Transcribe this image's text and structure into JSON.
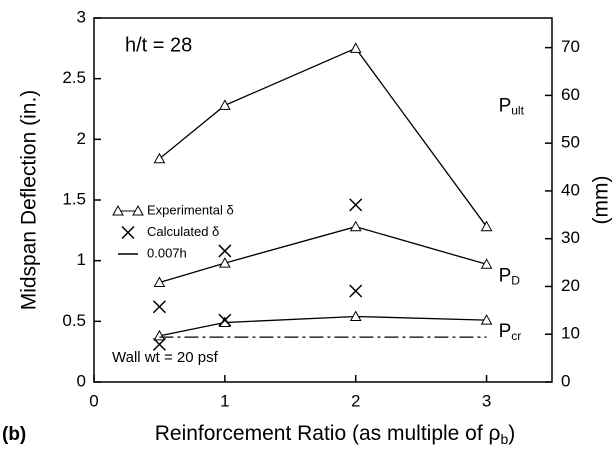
{
  "chart_data": {
    "type": "line",
    "title": "h/t = 28",
    "note": "Wall wt = 20 psf",
    "panel": "(b)",
    "ylabel": "Midspan Deflection (in.)",
    "y2label": "(mm)",
    "xlabel": {
      "text": "Reinforcement Ratio (as multiple of ρ",
      "sub": "b",
      "end": ")"
    },
    "xlim": [
      0,
      3.5
    ],
    "xticks": [
      0,
      1,
      2,
      3
    ],
    "ylim": [
      0,
      3
    ],
    "yticks": [
      0,
      0.5,
      1,
      1.5,
      2,
      2.5,
      3
    ],
    "y2lim": [
      0,
      76.2
    ],
    "y2ticks": [
      0,
      10,
      20,
      30,
      40,
      50,
      60,
      70
    ],
    "series": [
      {
        "name": "Experimental δ",
        "color": "#000000",
        "marker": "triangle",
        "curves": [
          {
            "label": {
              "text": "P",
              "sub": "ult"
            },
            "x": [
              0.5,
              1,
              2,
              3
            ],
            "values": [
              1.84,
              2.28,
              2.75,
              1.28
            ]
          },
          {
            "label": {
              "text": "P",
              "sub": "D"
            },
            "x": [
              0.5,
              1,
              2,
              3
            ],
            "values": [
              0.82,
              0.98,
              1.28,
              0.97
            ]
          },
          {
            "label": {
              "text": "P",
              "sub": "cr"
            },
            "x": [
              0.5,
              1,
              2,
              3
            ],
            "values": [
              0.38,
              0.49,
              0.54,
              0.51
            ]
          }
        ]
      },
      {
        "name": "Calculated  δ",
        "color": "#000000",
        "marker": "x",
        "x": [
          0.5,
          0.5,
          1,
          1,
          2,
          2
        ],
        "values": [
          0.62,
          0.31,
          1.08,
          0.51,
          1.46,
          0.75
        ]
      },
      {
        "name": "0.007h",
        "color": "#000000",
        "style": "dashdot",
        "x": [
          0.5,
          3
        ],
        "values": [
          0.37,
          0.37
        ]
      }
    ]
  }
}
